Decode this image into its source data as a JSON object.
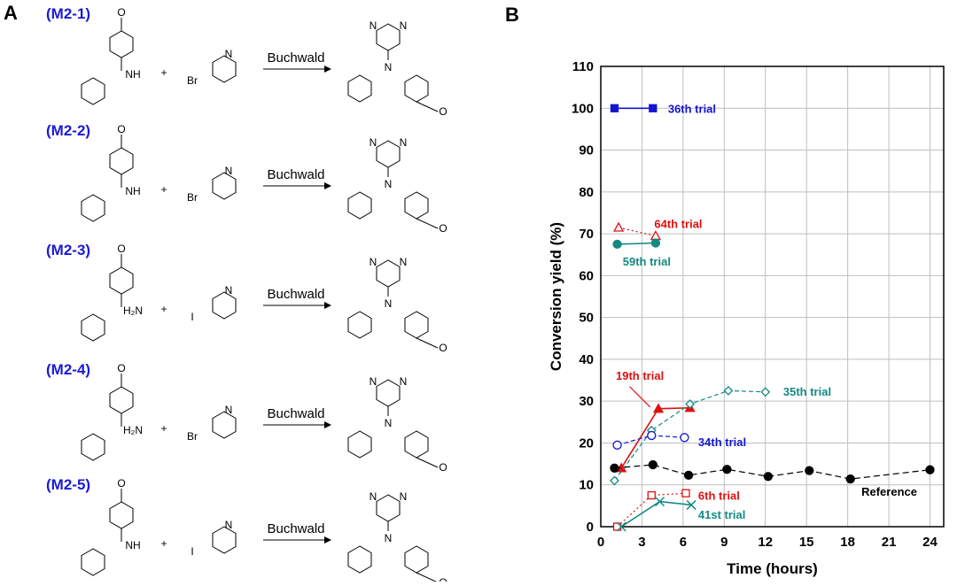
{
  "panel_a": {
    "letter": "A",
    "reagent_label": "Buchwald",
    "reactions": [
      {
        "label": "(M2-1)",
        "reactant1_group": "NH",
        "reactant2_group": "Br"
      },
      {
        "label": "(M2-2)",
        "reactant1_group": "NH",
        "reactant2_group": "Br"
      },
      {
        "label": "(M2-3)",
        "reactant1_group": "H₂N",
        "reactant2_group": "I"
      },
      {
        "label": "(M2-4)",
        "reactant1_group": "H₂N",
        "reactant2_group": "Br"
      },
      {
        "label": "(M2-5)",
        "reactant1_group": "NH",
        "reactant2_group": "I"
      }
    ],
    "plus": "+",
    "amine_label": "N",
    "ring_n": "N",
    "methoxy_o": "O"
  },
  "chart_data": {
    "panel_letter": "B",
    "type": "line",
    "xlabel": "Time (hours)",
    "ylabel": "Conversion yield (%)",
    "xlim": [
      0,
      25
    ],
    "ylim": [
      0,
      110
    ],
    "xticks": [
      0,
      3,
      6,
      9,
      12,
      15,
      18,
      21,
      24
    ],
    "yticks": [
      0,
      10,
      20,
      30,
      40,
      50,
      60,
      70,
      80,
      90,
      100,
      110
    ],
    "grid": true,
    "series": [
      {
        "name": "36th trial",
        "color": "#1515d0",
        "marker": "square",
        "filled": true,
        "dash": "",
        "x": [
          1,
          3.8
        ],
        "y": [
          100,
          100
        ]
      },
      {
        "name": "64th trial",
        "color": "#e01010",
        "marker": "triangle",
        "filled": false,
        "dash": "2,3",
        "x": [
          1.3,
          4
        ],
        "y": [
          71.5,
          69.5
        ]
      },
      {
        "name": "59th trial",
        "color": "#138a82",
        "marker": "circle",
        "filled": true,
        "dash": "",
        "x": [
          1.2,
          4
        ],
        "y": [
          67.5,
          67.8
        ]
      },
      {
        "name": "19th trial",
        "color": "#e01010",
        "marker": "triangle",
        "filled": true,
        "dash": "",
        "x": [
          1.5,
          4.2,
          6.5
        ],
        "y": [
          14,
          28.2,
          28.4
        ]
      },
      {
        "name": "35th trial",
        "color": "#138a82",
        "marker": "diamond",
        "filled": false,
        "dash": "5,3",
        "x": [
          1,
          3.7,
          6.5,
          9.3,
          12
        ],
        "y": [
          11,
          23,
          29.3,
          32.5,
          32.2
        ]
      },
      {
        "name": "34th trial",
        "color": "#1515d0",
        "marker": "circle",
        "filled": false,
        "dash": "5,3",
        "x": [
          1.2,
          3.7,
          6.1
        ],
        "y": [
          19.5,
          21.8,
          21.3
        ]
      },
      {
        "name": "Reference",
        "color": "#000000",
        "marker": "circle",
        "filled": true,
        "dash": "7,4",
        "x": [
          1,
          3.8,
          6.4,
          9.2,
          12.2,
          15.2,
          18.2,
          24
        ],
        "y": [
          14,
          14.8,
          12.3,
          13.7,
          12,
          13.4,
          11.4,
          13.6
        ]
      },
      {
        "name": "6th trial",
        "color": "#e01010",
        "marker": "square",
        "filled": false,
        "dash": "2,3",
        "x": [
          1.2,
          3.7,
          6.2
        ],
        "y": [
          0,
          7.5,
          8
        ]
      },
      {
        "name": "41st trial",
        "color": "#138a82",
        "marker": "x",
        "filled": false,
        "dash": "",
        "x": [
          1.5,
          4.3,
          6.6
        ],
        "y": [
          0,
          6,
          5.2
        ]
      }
    ]
  }
}
